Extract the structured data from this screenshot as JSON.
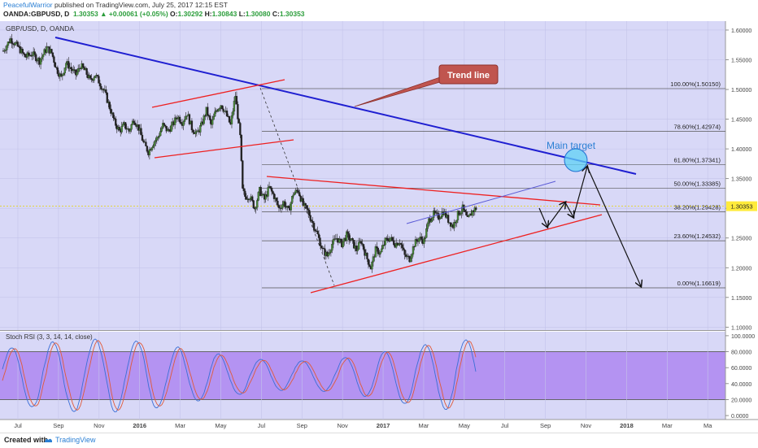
{
  "header": {
    "author": "PeacefulWarrior",
    "published": "published on TradingView.com, July 25, 2017 12:15 EST",
    "symbol": "OANDA:GBPUSD, D",
    "last": "1.30353",
    "change": "+0.00061 (+0.05%)",
    "o_label": "O:",
    "o": "1.30292",
    "h_label": "H:",
    "h": "1.30843",
    "l_label": "L:",
    "l": "1.30080",
    "c_label": "C:",
    "c": "1.30353"
  },
  "footer": {
    "created": "Created with",
    "brand": "TradingView"
  },
  "chart_data": {
    "type": "line",
    "title": "GBP/USD, D, OANDA",
    "price_ticks": [
      "1.60000",
      "1.55000",
      "1.50000",
      "1.45000",
      "1.40000",
      "1.35000",
      "1.30000",
      "1.25000",
      "1.20000",
      "1.15000",
      "1.10000"
    ],
    "price_tick_values": [
      1.6,
      1.55,
      1.5,
      1.45,
      1.4,
      1.35,
      1.3,
      1.25,
      1.2,
      1.15,
      1.1
    ],
    "ylim": [
      1.095,
      1.615
    ],
    "last_price_label": "1.30353",
    "last_price": 1.30353,
    "time_ticks": [
      "Jul",
      "Sep",
      "Nov",
      "2016",
      "Mar",
      "May",
      "Jul",
      "Sep",
      "Nov",
      "2017",
      "Mar",
      "May",
      "Jul",
      "Sep",
      "Nov",
      "2018",
      "Mar",
      "Ma"
    ],
    "fib_levels": [
      {
        "label": "100.00%(1.50150)",
        "value": 1.5015
      },
      {
        "label": "78.60%(1.42974)",
        "value": 1.42974
      },
      {
        "label": "61.80%(1.37341)",
        "value": 1.37341
      },
      {
        "label": "50.00%(1.33385)",
        "value": 1.33385
      },
      {
        "label": "38.20%(1.29428)",
        "value": 1.29428
      },
      {
        "label": "23.60%(1.24532)",
        "value": 1.24532
      },
      {
        "label": "0.00%(1.16619)",
        "value": 1.16619
      }
    ],
    "price_series": [
      [
        0,
        1.565
      ],
      [
        1.5,
        1.585
      ],
      [
        3,
        1.572
      ],
      [
        4.5,
        1.555
      ],
      [
        6,
        1.56
      ],
      [
        7.5,
        1.548
      ],
      [
        9,
        1.57
      ],
      [
        10,
        1.562
      ],
      [
        11,
        1.535
      ],
      [
        12,
        1.52
      ],
      [
        13,
        1.545
      ],
      [
        14,
        1.535
      ],
      [
        15,
        1.525
      ],
      [
        16,
        1.54
      ],
      [
        17,
        1.53
      ],
      [
        18,
        1.515
      ],
      [
        19,
        1.525
      ],
      [
        20,
        1.51
      ],
      [
        21,
        1.495
      ],
      [
        22,
        1.47
      ],
      [
        23,
        1.445
      ],
      [
        24,
        1.43
      ],
      [
        25,
        1.44
      ],
      [
        26,
        1.43
      ],
      [
        27,
        1.45
      ],
      [
        28,
        1.435
      ],
      [
        29,
        1.41
      ],
      [
        30,
        1.395
      ],
      [
        31,
        1.41
      ],
      [
        32,
        1.42
      ],
      [
        33,
        1.44
      ],
      [
        34,
        1.43
      ],
      [
        35,
        1.44
      ],
      [
        36,
        1.455
      ],
      [
        37,
        1.445
      ],
      [
        38,
        1.46
      ],
      [
        39,
        1.435
      ],
      [
        40,
        1.425
      ],
      [
        41,
        1.44
      ],
      [
        42,
        1.465
      ],
      [
        43,
        1.44
      ],
      [
        44,
        1.465
      ],
      [
        45,
        1.475
      ],
      [
        46,
        1.46
      ],
      [
        47,
        1.44
      ],
      [
        48,
        1.49
      ],
      [
        49,
        1.42
      ],
      [
        49.5,
        1.33
      ],
      [
        50,
        1.32
      ],
      [
        51,
        1.32
      ],
      [
        52,
        1.3
      ],
      [
        53,
        1.33
      ],
      [
        54,
        1.315
      ],
      [
        55,
        1.335
      ],
      [
        56,
        1.32
      ],
      [
        57,
        1.3
      ],
      [
        58,
        1.31
      ],
      [
        59,
        1.295
      ],
      [
        60,
        1.325
      ],
      [
        61,
        1.33
      ],
      [
        62,
        1.305
      ],
      [
        63,
        1.295
      ],
      [
        64,
        1.275
      ],
      [
        65,
        1.255
      ],
      [
        66,
        1.23
      ],
      [
        67,
        1.22
      ],
      [
        68,
        1.24
      ],
      [
        69,
        1.25
      ],
      [
        70,
        1.24
      ],
      [
        71,
        1.255
      ],
      [
        72,
        1.245
      ],
      [
        73,
        1.23
      ],
      [
        74,
        1.245
      ],
      [
        75,
        1.22
      ],
      [
        76,
        1.2
      ],
      [
        77,
        1.23
      ],
      [
        78,
        1.225
      ],
      [
        79,
        1.245
      ],
      [
        80,
        1.25
      ],
      [
        81,
        1.24
      ],
      [
        82,
        1.245
      ],
      [
        83,
        1.22
      ],
      [
        84,
        1.215
      ],
      [
        85,
        1.24
      ],
      [
        86,
        1.25
      ],
      [
        87,
        1.245
      ],
      [
        88,
        1.28
      ],
      [
        89,
        1.29
      ],
      [
        90,
        1.285
      ],
      [
        91,
        1.295
      ],
      [
        92,
        1.28
      ],
      [
        93,
        1.27
      ],
      [
        94,
        1.29
      ],
      [
        95,
        1.3
      ],
      [
        96,
        1.28
      ],
      [
        97,
        1.295
      ],
      [
        98,
        1.302
      ]
    ],
    "x_span": [
      0,
      150
    ],
    "stoch_rsi": {
      "label": "Stoch RSI (3, 3, 14, 14, close)",
      "ticks": [
        "100.0000",
        "80.0000",
        "60.0000",
        "40.0000",
        "20.0000",
        "0.0000"
      ],
      "tick_values": [
        100,
        80,
        60,
        40,
        20,
        0
      ],
      "bands": [
        80,
        20
      ],
      "ylim": [
        -5,
        105
      ]
    },
    "annotations": {
      "trend_line_label": "Trend line",
      "main_target_label": "Main target"
    }
  },
  "colors": {
    "chart_bg": "#d8d8f7",
    "stoch_band": "#b493f2",
    "trend_blue": "#1f1fd1",
    "channel_red": "#ee2020",
    "target_circle": "#5fd1f5",
    "label_box": "#c0554f",
    "bull_candle": "#4a8a3a",
    "bear_candle": "#222222"
  }
}
